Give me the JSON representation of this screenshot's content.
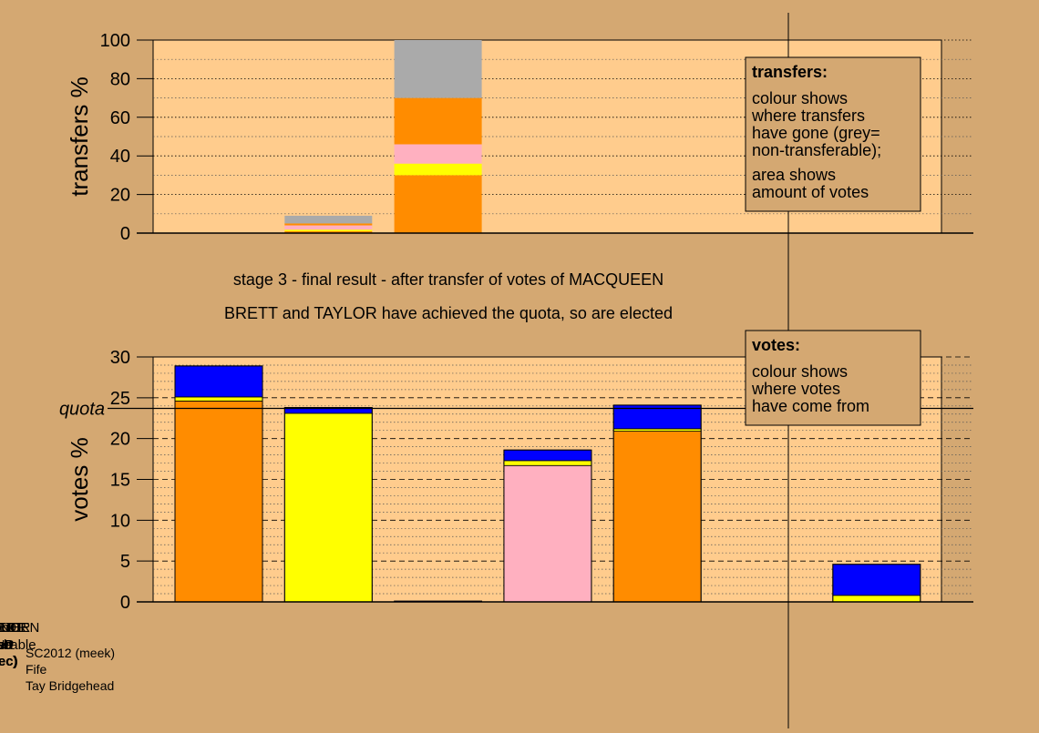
{
  "colors": {
    "page_bg": "#d4a872",
    "plot_bg": "#ffcc8d",
    "legend_bg": "#d4a872",
    "SLD": "#ff8c00",
    "SNP": "#ffff00",
    "Con": "#0000ff",
    "Lab": "#ffb0c0",
    "nontransferable": "#aaaaaa"
  },
  "captions": {
    "line1": "stage 3 - final result - after transfer of votes of MACQUEEN",
    "line2": "BRETT and TAYLOR have achieved the quota, so are elected"
  },
  "footer": {
    "line1": "SC2012 (meek)",
    "line2": "Fife",
    "line3": "Tay Bridgehead"
  },
  "legend_transfers": {
    "title": "transfers:",
    "lines1": [
      "colour shows",
      "where transfers",
      "have gone (grey=",
      "non-transferable);"
    ],
    "lines2": [
      "area shows",
      "amount of votes"
    ]
  },
  "legend_votes": {
    "title": "votes:",
    "lines1": [
      "colour shows",
      "where votes",
      "have come from"
    ]
  },
  "categories": [
    {
      "name": "BRETT",
      "party": "SLD",
      "status": "(elec)",
      "status_bold": true
    },
    {
      "name": "CONNOR",
      "party": "SNP",
      "status": "(elec)",
      "status_bold": false
    },
    {
      "name": "MACQUEEN",
      "party": "Con",
      "status": "",
      "status_bold": false
    },
    {
      "name": "O'NEILL",
      "party": "Lab",
      "status": "",
      "status_bold": false
    },
    {
      "name": "TAYLOR",
      "party": "SLD",
      "status": "(elec)",
      "status_bold": true
    },
    {
      "name": "",
      "party": "",
      "status": "",
      "status_bold": false
    },
    {
      "name": "non-",
      "party": "transferable",
      "status": "",
      "status_bold": false
    }
  ],
  "chart_data": [
    {
      "type": "bar",
      "stacked": true,
      "ylabel": "transfers %",
      "ylim": [
        0,
        100
      ],
      "yticks": [
        0,
        20,
        40,
        60,
        80,
        100
      ],
      "minor_grid_step": 10,
      "grid": true,
      "bar_width": "thin",
      "bars": [
        {
          "index": 1,
          "segments": [
            {
              "party": "SLD",
              "value": 1.0
            },
            {
              "party": "SNP",
              "value": 0.8
            },
            {
              "party": "Lab",
              "value": 2.2
            },
            {
              "party": "SLD",
              "value": 1.0
            },
            {
              "party": "nontransferable",
              "value": 4.0
            }
          ]
        },
        {
          "index": 2,
          "segments": [
            {
              "party": "SLD",
              "value": 30
            },
            {
              "party": "SNP",
              "value": 6
            },
            {
              "party": "Lab",
              "value": 10
            },
            {
              "party": "SLD",
              "value": 24
            },
            {
              "party": "nontransferable",
              "value": 30
            }
          ]
        }
      ]
    },
    {
      "type": "bar",
      "stacked": true,
      "ylabel": "votes %",
      "ylim": [
        0,
        30
      ],
      "yticks": [
        0,
        5,
        10,
        15,
        20,
        25,
        30
      ],
      "minor_grid_step": 1,
      "grid": true,
      "quota": {
        "label": "quota",
        "value": 23.7
      },
      "bars": [
        {
          "index": 0,
          "segments": [
            {
              "party": "SLD",
              "value": 24.6
            },
            {
              "party": "SNP",
              "value": 0.5
            },
            {
              "party": "Con",
              "value": 3.8
            }
          ]
        },
        {
          "index": 1,
          "segments": [
            {
              "party": "SNP",
              "value": 23.1
            },
            {
              "party": "Con",
              "value": 0.7
            }
          ]
        },
        {
          "index": 2,
          "segments": [
            {
              "party": "Con",
              "value": 0.0
            }
          ]
        },
        {
          "index": 3,
          "segments": [
            {
              "party": "Lab",
              "value": 16.7
            },
            {
              "party": "SNP",
              "value": 0.6
            },
            {
              "party": "Con",
              "value": 1.3
            }
          ]
        },
        {
          "index": 4,
          "segments": [
            {
              "party": "SLD",
              "value": 20.9
            },
            {
              "party": "SNP",
              "value": 0.3
            },
            {
              "party": "Con",
              "value": 2.9
            }
          ]
        },
        {
          "index": 6,
          "segments": [
            {
              "party": "SNP",
              "value": 0.8
            },
            {
              "party": "Con",
              "value": 3.8
            }
          ]
        }
      ]
    }
  ]
}
